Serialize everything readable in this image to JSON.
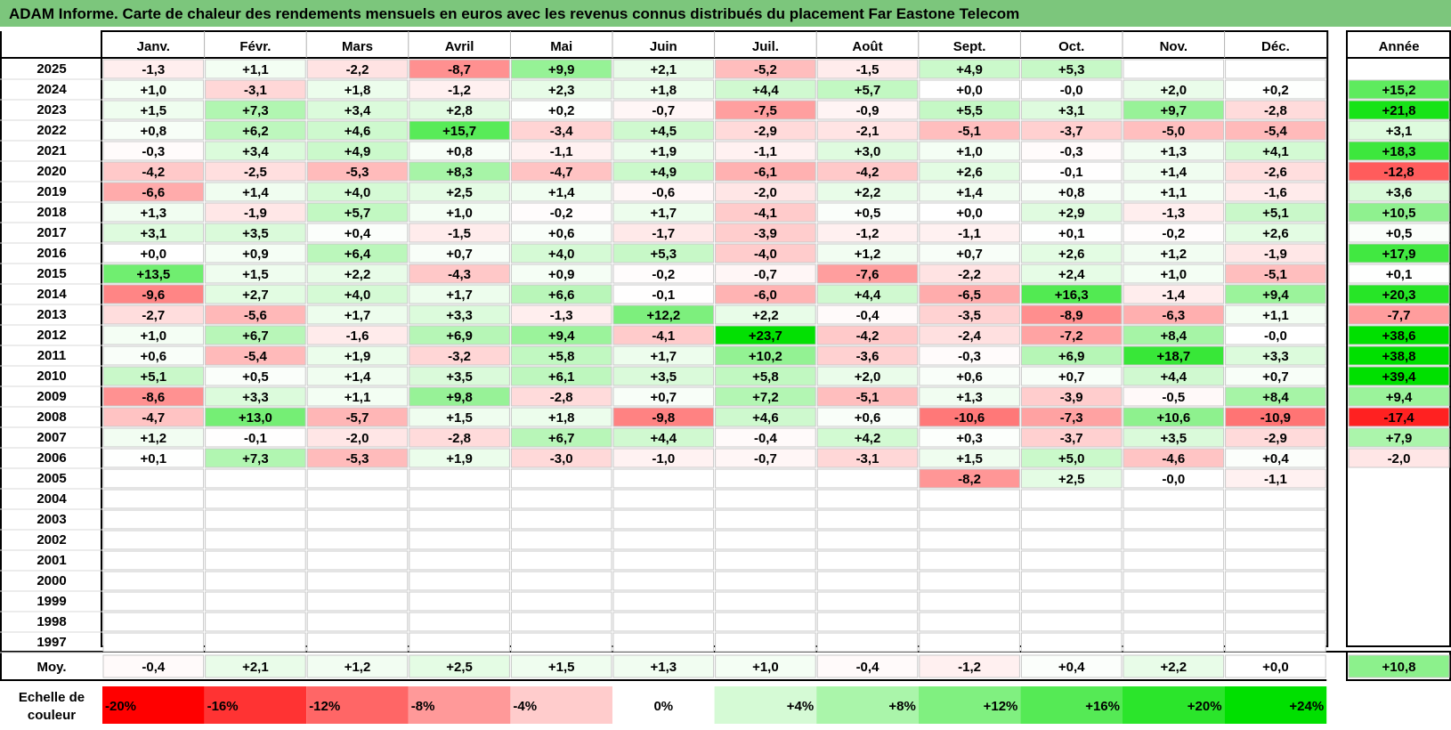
{
  "title": "ADAM Informe. Carte de chaleur des rendements mensuels en euros avec les revenus connus distribués du placement Far Eastone Telecom",
  "chart_data": {
    "type": "heatmap",
    "months": [
      "Janv.",
      "Févr.",
      "Mars",
      "Avril",
      "Mai",
      "Juin",
      "Juil.",
      "Août",
      "Sept.",
      "Oct.",
      "Nov.",
      "Déc."
    ],
    "year_col_label": "Année",
    "avg_label": "Moy.",
    "scale_label": "Echelle de couleur",
    "rows": [
      {
        "year": "2025",
        "values": [
          "-1,3",
          "+1,1",
          "-2,2",
          "-8,7",
          "+9,9",
          "+2,1",
          "-5,2",
          "-1,5",
          "+4,9",
          "+5,3",
          "",
          ""
        ],
        "annual": ""
      },
      {
        "year": "2024",
        "values": [
          "+1,0",
          "-3,1",
          "+1,8",
          "-1,2",
          "+2,3",
          "+1,8",
          "+4,4",
          "+5,7",
          "+0,0",
          "-0,0",
          "+2,0",
          "+0,2"
        ],
        "annual": "+15,2"
      },
      {
        "year": "2023",
        "values": [
          "+1,5",
          "+7,3",
          "+3,4",
          "+2,8",
          "+0,2",
          "-0,7",
          "-7,5",
          "-0,9",
          "+5,5",
          "+3,1",
          "+9,7",
          "-2,8"
        ],
        "annual": "+21,8"
      },
      {
        "year": "2022",
        "values": [
          "+0,8",
          "+6,2",
          "+4,6",
          "+15,7",
          "-3,4",
          "+4,5",
          "-2,9",
          "-2,1",
          "-5,1",
          "-3,7",
          "-5,0",
          "-5,4"
        ],
        "annual": "+3,1"
      },
      {
        "year": "2021",
        "values": [
          "-0,3",
          "+3,4",
          "+4,9",
          "+0,8",
          "-1,1",
          "+1,9",
          "-1,1",
          "+3,0",
          "+1,0",
          "-0,3",
          "+1,3",
          "+4,1"
        ],
        "annual": "+18,3"
      },
      {
        "year": "2020",
        "values": [
          "-4,2",
          "-2,5",
          "-5,3",
          "+8,3",
          "-4,7",
          "+4,9",
          "-6,1",
          "-4,2",
          "+2,6",
          "-0,1",
          "+1,4",
          "-2,6"
        ],
        "annual": "-12,8"
      },
      {
        "year": "2019",
        "values": [
          "-6,6",
          "+1,4",
          "+4,0",
          "+2,5",
          "+1,4",
          "-0,6",
          "-2,0",
          "+2,2",
          "+1,4",
          "+0,8",
          "+1,1",
          "-1,6"
        ],
        "annual": "+3,6"
      },
      {
        "year": "2018",
        "values": [
          "+1,3",
          "-1,9",
          "+5,7",
          "+1,0",
          "-0,2",
          "+1,7",
          "-4,1",
          "+0,5",
          "+0,0",
          "+2,9",
          "-1,3",
          "+5,1"
        ],
        "annual": "+10,5"
      },
      {
        "year": "2017",
        "values": [
          "+3,1",
          "+3,5",
          "+0,4",
          "-1,5",
          "+0,6",
          "-1,7",
          "-3,9",
          "-1,2",
          "-1,1",
          "+0,1",
          "-0,2",
          "+2,6"
        ],
        "annual": "+0,5"
      },
      {
        "year": "2016",
        "values": [
          "+0,0",
          "+0,9",
          "+6,4",
          "+0,7",
          "+4,0",
          "+5,3",
          "-4,0",
          "+1,2",
          "+0,7",
          "+2,6",
          "+1,2",
          "-1,9"
        ],
        "annual": "+17,9"
      },
      {
        "year": "2015",
        "values": [
          "+13,5",
          "+1,5",
          "+2,2",
          "-4,3",
          "+0,9",
          "-0,2",
          "-0,7",
          "-7,6",
          "-2,2",
          "+2,4",
          "+1,0",
          "-5,1"
        ],
        "annual": "+0,1"
      },
      {
        "year": "2014",
        "values": [
          "-9,6",
          "+2,7",
          "+4,0",
          "+1,7",
          "+6,6",
          "-0,1",
          "-6,0",
          "+4,4",
          "-6,5",
          "+16,3",
          "-1,4",
          "+9,4"
        ],
        "annual": "+20,3"
      },
      {
        "year": "2013",
        "values": [
          "-2,7",
          "-5,6",
          "+1,7",
          "+3,3",
          "-1,3",
          "+12,2",
          "+2,2",
          "-0,4",
          "-3,5",
          "-8,9",
          "-6,3",
          "+1,1"
        ],
        "annual": "-7,7"
      },
      {
        "year": "2012",
        "values": [
          "+1,0",
          "+6,7",
          "-1,6",
          "+6,9",
          "+9,4",
          "-4,1",
          "+23,7",
          "-4,2",
          "-2,4",
          "-7,2",
          "+8,4",
          "-0,0"
        ],
        "annual": "+38,6"
      },
      {
        "year": "2011",
        "values": [
          "+0,6",
          "-5,4",
          "+1,9",
          "-3,2",
          "+5,8",
          "+1,7",
          "+10,2",
          "-3,6",
          "-0,3",
          "+6,9",
          "+18,7",
          "+3,3"
        ],
        "annual": "+38,8"
      },
      {
        "year": "2010",
        "values": [
          "+5,1",
          "+0,5",
          "+1,4",
          "+3,5",
          "+6,1",
          "+3,5",
          "+5,8",
          "+2,0",
          "+0,6",
          "+0,7",
          "+4,4",
          "+0,7"
        ],
        "annual": "+39,4"
      },
      {
        "year": "2009",
        "values": [
          "-8,6",
          "+3,3",
          "+1,1",
          "+9,8",
          "-2,8",
          "+0,7",
          "+7,2",
          "-5,1",
          "+1,3",
          "-3,9",
          "-0,5",
          "+8,4"
        ],
        "annual": "+9,4"
      },
      {
        "year": "2008",
        "values": [
          "-4,7",
          "+13,0",
          "-5,7",
          "+1,5",
          "+1,8",
          "-9,8",
          "+4,6",
          "+0,6",
          "-10,6",
          "-7,3",
          "+10,6",
          "-10,9"
        ],
        "annual": "-17,4"
      },
      {
        "year": "2007",
        "values": [
          "+1,2",
          "-0,1",
          "-2,0",
          "-2,8",
          "+6,7",
          "+4,4",
          "-0,4",
          "+4,2",
          "+0,3",
          "-3,7",
          "+3,5",
          "-2,9"
        ],
        "annual": "+7,9"
      },
      {
        "year": "2006",
        "values": [
          "+0,1",
          "+7,3",
          "-5,3",
          "+1,9",
          "-3,0",
          "-1,0",
          "-0,7",
          "-3,1",
          "+1,5",
          "+5,0",
          "-4,6",
          "+0,4"
        ],
        "annual": "-2,0"
      },
      {
        "year": "2005",
        "values": [
          "",
          "",
          "",
          "",
          "",
          "",
          "",
          "",
          "-8,2",
          "+2,5",
          "-0,0",
          "-1,1"
        ],
        "annual": ""
      },
      {
        "year": "2004",
        "values": [
          "",
          "",
          "",
          "",
          "",
          "",
          "",
          "",
          "",
          "",
          "",
          ""
        ],
        "annual": ""
      },
      {
        "year": "2003",
        "values": [
          "",
          "",
          "",
          "",
          "",
          "",
          "",
          "",
          "",
          "",
          "",
          ""
        ],
        "annual": ""
      },
      {
        "year": "2002",
        "values": [
          "",
          "",
          "",
          "",
          "",
          "",
          "",
          "",
          "",
          "",
          "",
          ""
        ],
        "annual": ""
      },
      {
        "year": "2001",
        "values": [
          "",
          "",
          "",
          "",
          "",
          "",
          "",
          "",
          "",
          "",
          "",
          ""
        ],
        "annual": ""
      },
      {
        "year": "2000",
        "values": [
          "",
          "",
          "",
          "",
          "",
          "",
          "",
          "",
          "",
          "",
          "",
          ""
        ],
        "annual": ""
      },
      {
        "year": "1999",
        "values": [
          "",
          "",
          "",
          "",
          "",
          "",
          "",
          "",
          "",
          "",
          "",
          ""
        ],
        "annual": ""
      },
      {
        "year": "1998",
        "values": [
          "",
          "",
          "",
          "",
          "",
          "",
          "",
          "",
          "",
          "",
          "",
          ""
        ],
        "annual": ""
      },
      {
        "year": "1997",
        "values": [
          "",
          "",
          "",
          "",
          "",
          "",
          "",
          "",
          "",
          "",
          "",
          ""
        ],
        "annual": ""
      }
    ],
    "averages": [
      "-0,4",
      "+2,1",
      "+1,2",
      "+2,5",
      "+1,5",
      "+1,3",
      "+1,0",
      "-0,4",
      "-1,2",
      "+0,4",
      "+2,2",
      "+0,0"
    ],
    "average_annual": "+10,8",
    "scale": [
      {
        "label": "-20%",
        "value": -20
      },
      {
        "label": "-16%",
        "value": -16
      },
      {
        "label": "-12%",
        "value": -12
      },
      {
        "label": "-8%",
        "value": -8
      },
      {
        "label": "-4%",
        "value": -4
      },
      {
        "label": "0%",
        "value": 0
      },
      {
        "label": "+4%",
        "value": 4
      },
      {
        "label": "+8%",
        "value": 8
      },
      {
        "label": "+12%",
        "value": 12
      },
      {
        "label": "+16%",
        "value": 16
      },
      {
        "label": "+20%",
        "value": 20
      },
      {
        "label": "+24%",
        "value": 24
      }
    ],
    "colors": {
      "positive": "#00e000",
      "negative": "#ff0000",
      "neutral": "#ffffff",
      "title_bar": "#7cc67c",
      "grid": "#c0c0c0",
      "frame": "#000000"
    }
  }
}
